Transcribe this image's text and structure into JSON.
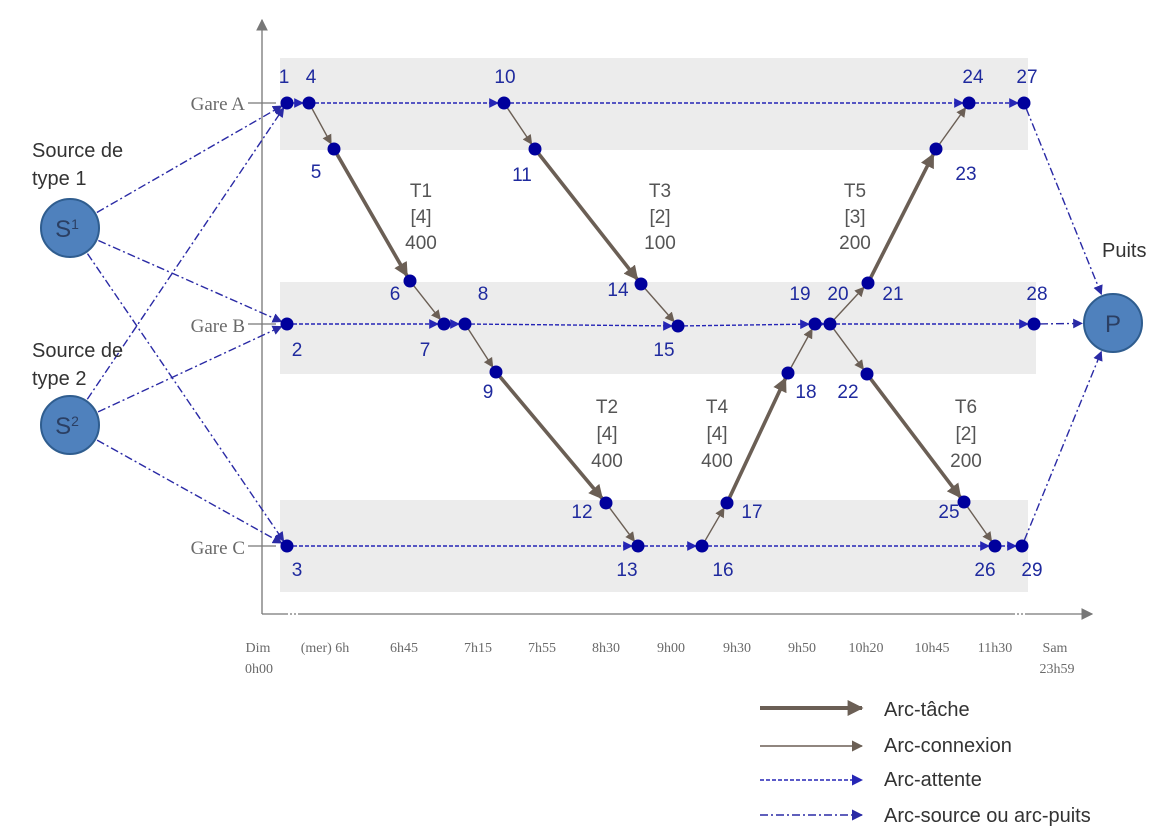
{
  "stations": [
    {
      "id": "A",
      "label": "Gare A"
    },
    {
      "id": "B",
      "label": "Gare B"
    },
    {
      "id": "C",
      "label": "Gare C"
    }
  ],
  "time_ticks": [
    {
      "line1": "Dim",
      "line2": "0h00"
    },
    {
      "line1": "(mer) 6h",
      "line2": ""
    },
    {
      "line1": "6h45",
      "line2": ""
    },
    {
      "line1": "7h15",
      "line2": ""
    },
    {
      "line1": "7h55",
      "line2": ""
    },
    {
      "line1": "8h30",
      "line2": ""
    },
    {
      "line1": "9h00",
      "line2": ""
    },
    {
      "line1": "9h30",
      "line2": ""
    },
    {
      "line1": "9h50",
      "line2": ""
    },
    {
      "line1": "10h20",
      "line2": ""
    },
    {
      "line1": "10h45",
      "line2": ""
    },
    {
      "line1": "11h30",
      "line2": ""
    },
    {
      "line1": "Sam",
      "line2": "23h59"
    }
  ],
  "sources": [
    {
      "id": "S1",
      "caption_line1": "Source de",
      "caption_line2": "type 1",
      "letter": "S",
      "sup": "1"
    },
    {
      "id": "S2",
      "caption_line1": "Source de",
      "caption_line2": "type 2",
      "letter": "S",
      "sup": "2"
    }
  ],
  "sink": {
    "caption": "Puits",
    "letter": "P"
  },
  "nodes": [
    {
      "id": "1",
      "label": "1",
      "station": "A"
    },
    {
      "id": "2",
      "label": "2",
      "station": "B"
    },
    {
      "id": "3",
      "label": "3",
      "station": "C"
    },
    {
      "id": "4",
      "label": "4",
      "station": "A"
    },
    {
      "id": "5",
      "label": "5",
      "station": "A"
    },
    {
      "id": "6",
      "label": "6",
      "station": "B"
    },
    {
      "id": "7",
      "label": "7",
      "station": "B"
    },
    {
      "id": "8",
      "label": "8",
      "station": "B"
    },
    {
      "id": "9",
      "label": "9",
      "station": "B"
    },
    {
      "id": "10",
      "label": "10",
      "station": "A"
    },
    {
      "id": "11",
      "label": "11",
      "station": "A"
    },
    {
      "id": "12",
      "label": "12",
      "station": "C"
    },
    {
      "id": "13",
      "label": "13",
      "station": "C"
    },
    {
      "id": "14",
      "label": "14",
      "station": "B"
    },
    {
      "id": "15",
      "label": "15",
      "station": "B"
    },
    {
      "id": "16",
      "label": "16",
      "station": "C"
    },
    {
      "id": "17",
      "label": "17",
      "station": "C"
    },
    {
      "id": "18",
      "label": "18",
      "station": "B"
    },
    {
      "id": "19",
      "label": "19",
      "station": "B"
    },
    {
      "id": "20",
      "label": "20",
      "station": "B"
    },
    {
      "id": "21",
      "label": "21",
      "station": "B"
    },
    {
      "id": "22",
      "label": "22",
      "station": "B"
    },
    {
      "id": "23",
      "label": "23",
      "station": "A"
    },
    {
      "id": "24",
      "label": "24",
      "station": "A"
    },
    {
      "id": "25",
      "label": "25",
      "station": "C"
    },
    {
      "id": "26",
      "label": "26",
      "station": "C"
    },
    {
      "id": "27",
      "label": "27",
      "station": "A"
    },
    {
      "id": "28",
      "label": "28",
      "station": "B"
    },
    {
      "id": "29",
      "label": "29",
      "station": "C"
    }
  ],
  "tasks": [
    {
      "name": "T1",
      "capacity": "[4]",
      "value": "400",
      "from": "5",
      "to": "6"
    },
    {
      "name": "T2",
      "capacity": "[4]",
      "value": "400",
      "from": "9",
      "to": "12"
    },
    {
      "name": "T3",
      "capacity": "[2]",
      "value": "100",
      "from": "11",
      "to": "14"
    },
    {
      "name": "T4",
      "capacity": "[4]",
      "value": "400",
      "from": "17",
      "to": "18"
    },
    {
      "name": "T5",
      "capacity": "[3]",
      "value": "200",
      "from": "21",
      "to": "23"
    },
    {
      "name": "T6",
      "capacity": "[2]",
      "value": "200",
      "from": "22",
      "to": "25"
    }
  ],
  "connections": [
    [
      "4",
      "5"
    ],
    [
      "6",
      "7"
    ],
    [
      "8",
      "9"
    ],
    [
      "10",
      "11"
    ],
    [
      "14",
      "15"
    ],
    [
      "12",
      "13"
    ],
    [
      "16",
      "17"
    ],
    [
      "18",
      "19"
    ],
    [
      "20",
      "21"
    ],
    [
      "20",
      "22"
    ],
    [
      "23",
      "24"
    ],
    [
      "25",
      "26"
    ]
  ],
  "waits": [
    [
      "1",
      "4"
    ],
    [
      "4",
      "10"
    ],
    [
      "10",
      "24"
    ],
    [
      "24",
      "27"
    ],
    [
      "2",
      "7"
    ],
    [
      "7",
      "8"
    ],
    [
      "8",
      "15"
    ],
    [
      "15",
      "19"
    ],
    [
      "19",
      "20"
    ],
    [
      "20",
      "28"
    ],
    [
      "3",
      "13"
    ],
    [
      "13",
      "16"
    ],
    [
      "16",
      "26"
    ],
    [
      "26",
      "29"
    ]
  ],
  "source_arcs": [
    [
      "S1",
      "1"
    ],
    [
      "S1",
      "2"
    ],
    [
      "S1",
      "3"
    ],
    [
      "S2",
      "1"
    ],
    [
      "S2",
      "2"
    ],
    [
      "S2",
      "3"
    ]
  ],
  "sink_arcs": [
    [
      "27",
      "P"
    ],
    [
      "28",
      "P"
    ],
    [
      "29",
      "P"
    ]
  ],
  "legend": [
    {
      "kind": "task",
      "label": "Arc-tâche"
    },
    {
      "kind": "connection",
      "label": "Arc-connexion"
    },
    {
      "kind": "wait",
      "label": "Arc-attente"
    },
    {
      "kind": "source",
      "label": "Arc-source ou arc-puits"
    }
  ],
  "colors": {
    "node": "#00009c",
    "node_label": "#1f2a9e",
    "task_arc": "#6b5f55",
    "connection_arc": "#6b5f55",
    "wait_arc": "#2525b5",
    "source_arc": "#2a2aa5",
    "band": "#ececec",
    "circle_fill": "#4f81bd",
    "circle_stroke": "#2f5d8f",
    "task_text": "#555555",
    "axis": "#777777"
  }
}
